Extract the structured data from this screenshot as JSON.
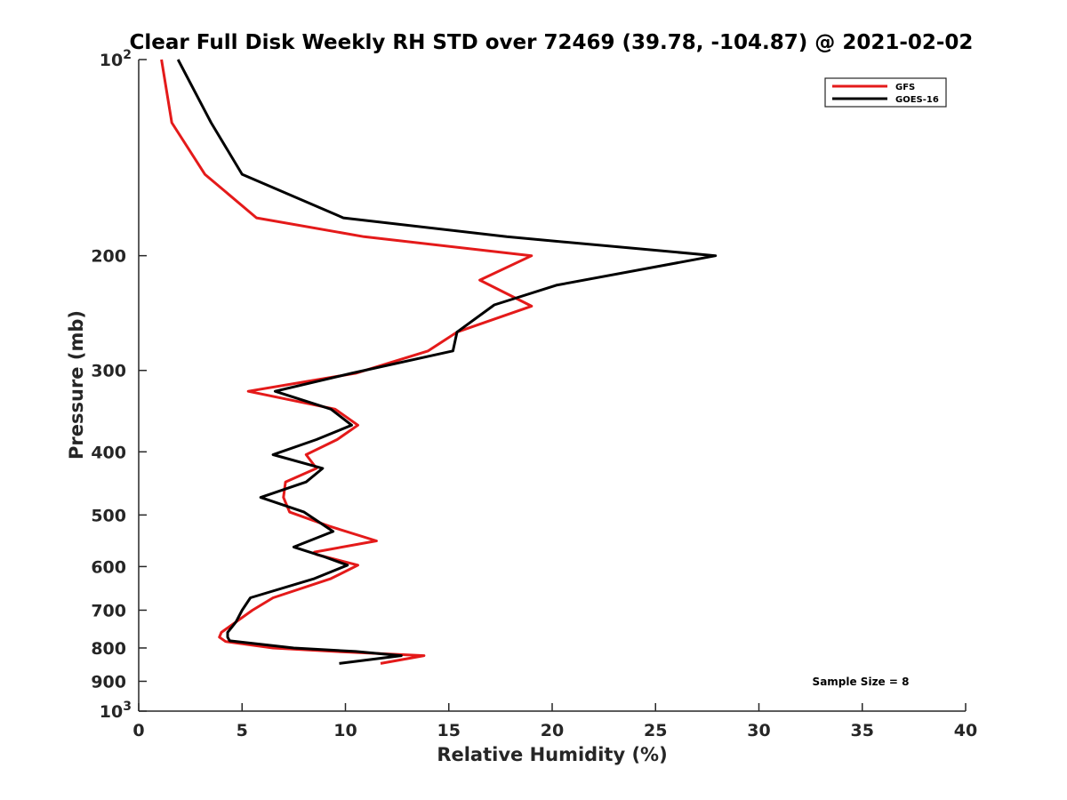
{
  "chart_data": {
    "type": "line",
    "title": "Clear Full Disk Weekly RH STD over 72469 (39.78, -104.87) @ 2021-02-02",
    "xlabel": "Relative Humidity (%)",
    "ylabel": "Pressure (mb)",
    "xlim": [
      0,
      40
    ],
    "ylim": [
      100,
      1000
    ],
    "y_scale": "log",
    "y_reversed": true,
    "x_ticks": [
      0,
      5,
      10,
      15,
      20,
      25,
      30,
      35,
      40
    ],
    "x_tick_labels": [
      "0",
      "5",
      "10",
      "15",
      "20",
      "25",
      "30",
      "35",
      "40"
    ],
    "y_ticks": [
      100,
      200,
      300,
      400,
      500,
      600,
      700,
      800,
      900,
      1000
    ],
    "y_tick_labels": [
      "10^2",
      "200",
      "300",
      "400",
      "500",
      "600",
      "700",
      "800",
      "900",
      "10^3"
    ],
    "grid": false,
    "legend_position": "top-right",
    "series": [
      {
        "name": "GFS",
        "color": "#e41a1a",
        "points": [
          [
            1.1,
            100
          ],
          [
            1.6,
            125
          ],
          [
            3.2,
            150
          ],
          [
            5.7,
            175
          ],
          [
            10.9,
            187
          ],
          [
            19.0,
            200
          ],
          [
            16.5,
            218
          ],
          [
            19.0,
            239
          ],
          [
            15.4,
            262
          ],
          [
            14.0,
            280
          ],
          [
            10.5,
            303
          ],
          [
            5.3,
            323
          ],
          [
            9.5,
            344
          ],
          [
            10.6,
            364
          ],
          [
            9.6,
            383
          ],
          [
            8.1,
            404
          ],
          [
            8.6,
            424
          ],
          [
            7.1,
            445
          ],
          [
            7.0,
            470
          ],
          [
            7.3,
            495
          ],
          [
            9.2,
            520
          ],
          [
            11.5,
            548
          ],
          [
            8.5,
            570
          ],
          [
            8.6,
            575
          ],
          [
            10.6,
            597
          ],
          [
            9.3,
            626
          ],
          [
            6.5,
            670
          ],
          [
            5.5,
            700
          ],
          [
            4.0,
            757
          ],
          [
            3.9,
            770
          ],
          [
            4.2,
            782
          ],
          [
            6.5,
            800
          ],
          [
            9.5,
            810
          ],
          [
            13.8,
            822
          ],
          [
            11.7,
            845
          ]
        ]
      },
      {
        "name": "GOES-16",
        "color": "#000000",
        "points": [
          [
            1.9,
            100
          ],
          [
            3.5,
            125
          ],
          [
            5.0,
            150
          ],
          [
            9.9,
            175
          ],
          [
            17.8,
            187
          ],
          [
            27.9,
            200
          ],
          [
            20.2,
            222
          ],
          [
            17.2,
            238
          ],
          [
            15.4,
            262
          ],
          [
            15.2,
            280
          ],
          [
            10.3,
            303
          ],
          [
            6.6,
            323
          ],
          [
            9.3,
            344
          ],
          [
            10.3,
            364
          ],
          [
            8.6,
            383
          ],
          [
            6.5,
            404
          ],
          [
            8.9,
            424
          ],
          [
            8.1,
            445
          ],
          [
            5.9,
            470
          ],
          [
            8.0,
            495
          ],
          [
            9.4,
            530
          ],
          [
            7.5,
            560
          ],
          [
            9.0,
            580
          ],
          [
            10.1,
            597
          ],
          [
            8.5,
            626
          ],
          [
            5.4,
            670
          ],
          [
            5.0,
            700
          ],
          [
            4.7,
            730
          ],
          [
            4.3,
            757
          ],
          [
            4.3,
            770
          ],
          [
            4.4,
            780
          ],
          [
            7.5,
            800
          ],
          [
            10.5,
            810
          ],
          [
            12.7,
            822
          ],
          [
            9.7,
            845
          ]
        ]
      }
    ],
    "annotations": [
      "Sample Size = 8"
    ]
  }
}
